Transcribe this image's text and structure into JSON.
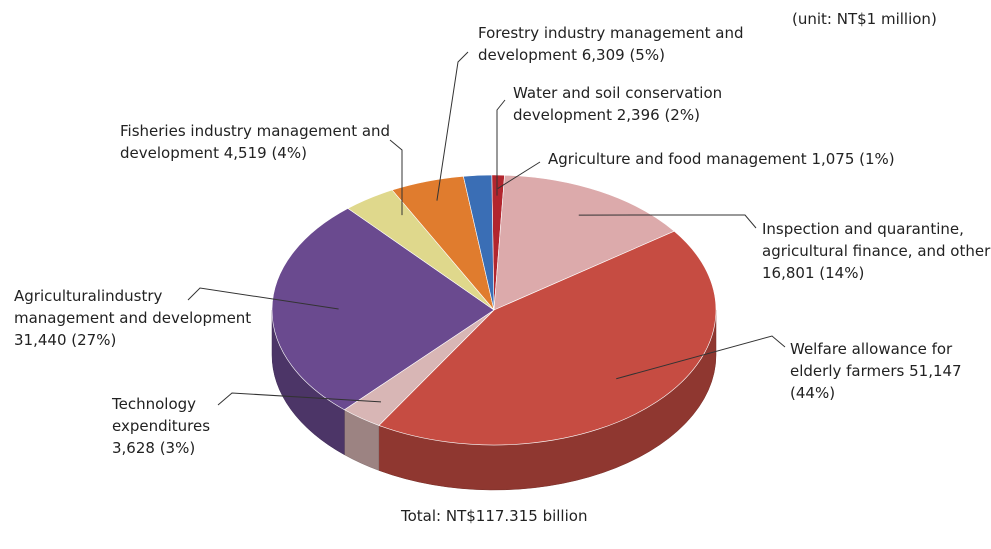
{
  "chart_data": {
    "type": "pie3d",
    "unit_note": "(unit: NT$1 million)",
    "total_note": "Total: NT$117.315 billion",
    "categories": [
      "Agriculture and food management",
      "Inspection and quarantine, agricultural finance, and other",
      "Welfare allowance for elderly farmers",
      "Technology expenditures",
      "Agriculturalindustry management and development",
      "Fisheries industry management and development",
      "Forestry industry management and development",
      "Water and soil conservation development"
    ],
    "values": [
      1075,
      16801,
      51147,
      3628,
      31440,
      4519,
      6309,
      2396
    ],
    "value_labels": [
      "1,075 (1%)",
      "16,801 (14%)",
      "51,147 (44%)",
      "3,628 (3%)",
      "31,440 (27%)",
      "4,519 (4%)",
      "6,309 (5%)",
      "2,396 (2%)"
    ],
    "colors": [
      "#b2262e",
      "#dcaaab",
      "#c64c42",
      "#d8b6b5",
      "#6a4a8f",
      "#dfd88c",
      "#e07c2e",
      "#3a6eb5"
    ]
  }
}
